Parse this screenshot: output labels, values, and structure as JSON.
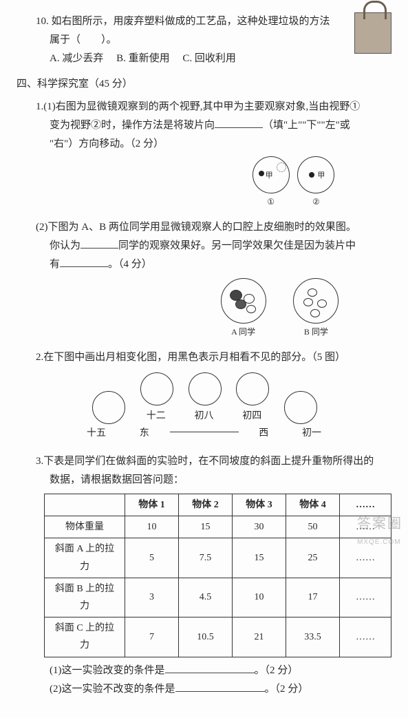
{
  "q10": {
    "num": "10.",
    "text_a": "如右图所示，用废弃塑料做成的工艺品，这种处理垃圾的方法",
    "text_b": "属于（　　）。",
    "opts": {
      "A": "A. 减少丢弃",
      "B": "B. 重新使用",
      "C": "C. 回收利用"
    }
  },
  "section4": {
    "title": "四、科学探究室（45 分）"
  },
  "s4q1_1": {
    "num": "1.(1)",
    "line1": "右图为显微镜观察到的两个视野,其中甲为主要观察对象,当由视野①",
    "line2a": "变为视野②时，操作方法是将玻片向",
    "line2b": "（填\"上\"\"下\"\"左\"或",
    "line3": "\"右\"）方向移动。（2 分）",
    "labels": {
      "jia": "甲",
      "c1": "①",
      "c2": "②"
    }
  },
  "s4q1_2": {
    "num": "(2)",
    "line1": "下图为 A、B 两位同学用显微镜观察人的口腔上皮细胞时的效果图。",
    "line2a": "你认为",
    "line2b": "同学的观察效果好。另一同学效果欠佳是因为装片中",
    "line3a": "有",
    "line3b": "。（4 分）",
    "labelA": "A 同学",
    "labelB": "B 同学"
  },
  "s4q2": {
    "num": "2.",
    "text": "在下图中画出月相变化图，用黑色表示月相看不见的部分。（5 图）",
    "labels": {
      "m15": "十五",
      "m12": "十二",
      "m8": "初八",
      "m4": "初四",
      "m1": "初一",
      "east": "东",
      "west": "西"
    }
  },
  "s4q3": {
    "num": "3.",
    "line1": "下表是同学们在做斜面的实验时，在不同坡度的斜面上提升重物所得出的",
    "line2": "数据，请根据数据回答问题：",
    "table": {
      "headers": [
        "",
        "物体 1",
        "物体 2",
        "物体 3",
        "物体 4",
        "……"
      ],
      "rows": [
        [
          "物体重量",
          "10",
          "15",
          "30",
          "50",
          "……"
        ],
        [
          "斜面 A 上的拉力",
          "5",
          "7.5",
          "15",
          "25",
          "……"
        ],
        [
          "斜面 B 上的拉力",
          "3",
          "4.5",
          "10",
          "17",
          "……"
        ],
        [
          "斜面 C 上的拉力",
          "7",
          "10.5",
          "21",
          "33.5",
          "……"
        ]
      ],
      "col_widths": [
        "110px",
        "58px",
        "58px",
        "58px",
        "58px",
        "48px"
      ]
    },
    "sub1a": "(1)这一实验改变的条件是",
    "sub1b": "。（2 分）",
    "sub2a": "(2)这一实验不改变的条件是",
    "sub2b": "。（2 分）"
  },
  "watermark": {
    "big": "答案圈",
    "small": "MXQE.COM"
  },
  "colors": {
    "text": "#2a2a2a",
    "border": "#333333",
    "bg": "#fdfdfd"
  }
}
